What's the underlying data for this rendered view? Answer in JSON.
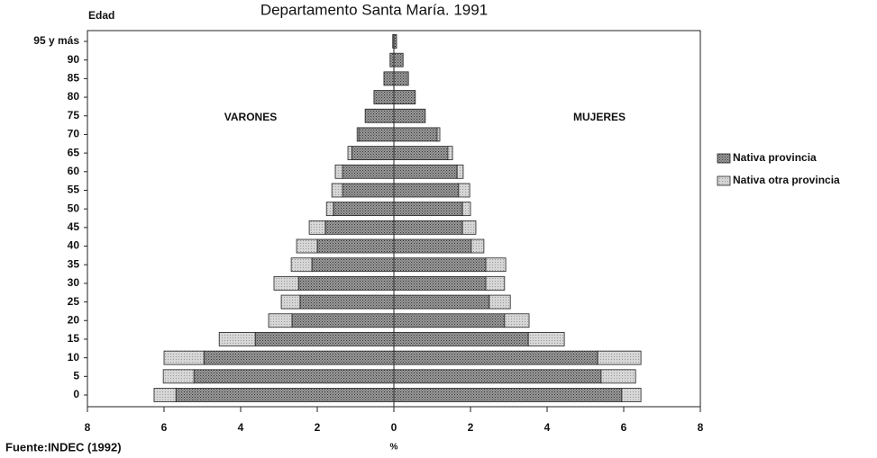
{
  "chart_data": {
    "type": "pyramid",
    "title": "Departamento Santa María. 1991",
    "y_axis_label": "Edad",
    "x_axis_label": "%",
    "source": "Fuente:INDEC (1992)",
    "side_labels": [
      "VARONES",
      "MUJERES"
    ],
    "categories": [
      "0",
      "5",
      "10",
      "15",
      "20",
      "25",
      "30",
      "35",
      "40",
      "45",
      "50",
      "55",
      "60",
      "65",
      "70",
      "75",
      "80",
      "85",
      "90",
      "95 y más"
    ],
    "series": [
      {
        "name": "Nativa provincia",
        "color": "#8a8a8a",
        "left": [
          5.69,
          5.22,
          4.96,
          3.62,
          2.66,
          2.45,
          2.49,
          2.14,
          2.0,
          1.79,
          1.58,
          1.34,
          1.34,
          1.1,
          0.92,
          0.75,
          0.52,
          0.26,
          0.1,
          0.03
        ],
        "right": [
          5.95,
          5.41,
          5.32,
          3.51,
          2.89,
          2.49,
          2.4,
          2.4,
          2.02,
          1.79,
          1.79,
          1.69,
          1.65,
          1.41,
          1.13,
          0.82,
          0.56,
          0.38,
          0.24,
          0.07
        ]
      },
      {
        "name": "Nativa otra provincia",
        "color": "#cfcfcf",
        "left": [
          0.57,
          0.8,
          1.04,
          0.94,
          0.61,
          0.49,
          0.64,
          0.54,
          0.54,
          0.42,
          0.18,
          0.28,
          0.19,
          0.1,
          0.04,
          0,
          0,
          0,
          0,
          0
        ],
        "right": [
          0.5,
          0.9,
          1.13,
          0.94,
          0.64,
          0.55,
          0.49,
          0.52,
          0.33,
          0.35,
          0.21,
          0.29,
          0.16,
          0.12,
          0.07,
          0,
          0,
          0,
          0,
          0
        ]
      }
    ],
    "xlim": [
      -8,
      8
    ],
    "xticks": [
      {
        "value": -8,
        "label": "8"
      },
      {
        "value": -6,
        "label": "6"
      },
      {
        "value": -4,
        "label": "4"
      },
      {
        "value": -2,
        "label": "2"
      },
      0,
      2,
      4,
      6,
      8
    ],
    "legend": "right"
  }
}
